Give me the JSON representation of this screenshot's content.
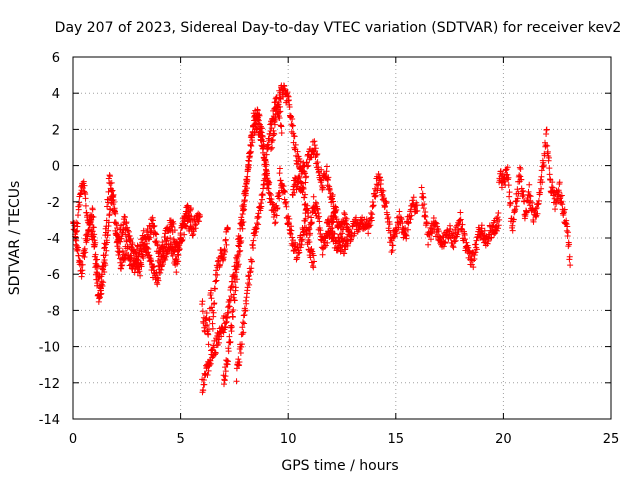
{
  "chart_data": {
    "type": "scatter",
    "title": "Day 207 of 2023, Sidereal Day-to-day VTEC variation (SDTVAR) for receiver kev2",
    "xlabel": "GPS time / hours",
    "ylabel": "SDTVAR / TECUs",
    "xlim": [
      0,
      25
    ],
    "ylim": [
      -14,
      6
    ],
    "x_ticks": [
      "0",
      "5",
      "10",
      "15",
      "20",
      "25"
    ],
    "y_ticks": [
      "6",
      "4",
      "2",
      "0",
      "-2",
      "-4",
      "-6",
      "-8",
      "-10",
      "-12",
      "-14"
    ],
    "grid": true,
    "marker": "+",
    "color": "#ff0000",
    "series": [
      {
        "name": "SDTVAR",
        "traces": [
          [
            [
              0.0,
              -3.0
            ],
            [
              0.2,
              -4.5
            ],
            [
              0.4,
              -5.8
            ],
            [
              0.6,
              -4.2
            ],
            [
              0.8,
              -3.0
            ],
            [
              1.0,
              -4.8
            ],
            [
              1.2,
              -7.6
            ],
            [
              1.4,
              -6.0
            ],
            [
              1.6,
              -4.2
            ],
            [
              1.8,
              -1.5
            ],
            [
              2.0,
              -3.5
            ],
            [
              2.2,
              -5.5
            ],
            [
              2.5,
              -4.5
            ],
            [
              2.8,
              -5.8
            ],
            [
              3.0,
              -4.8
            ],
            [
              3.3,
              -4.0
            ],
            [
              3.6,
              -5.5
            ],
            [
              3.9,
              -6.2
            ],
            [
              4.2,
              -5.0
            ],
            [
              4.5,
              -4.2
            ],
            [
              4.8,
              -5.5
            ],
            [
              5.0,
              -4.0
            ],
            [
              5.3,
              -3.0
            ],
            [
              5.6,
              -3.5
            ],
            [
              5.9,
              -2.8
            ]
          ],
          [
            [
              0.1,
              -4.0
            ],
            [
              0.3,
              -2.0
            ],
            [
              0.5,
              -0.8
            ],
            [
              0.7,
              -3.5
            ],
            [
              0.9,
              -2.5
            ],
            [
              1.1,
              -5.5
            ],
            [
              1.3,
              -6.8
            ],
            [
              1.5,
              -4.0
            ],
            [
              1.7,
              -0.5
            ],
            [
              1.9,
              -2.2
            ],
            [
              2.1,
              -4.2
            ],
            [
              2.4,
              -3.2
            ],
            [
              2.7,
              -4.5
            ],
            [
              3.1,
              -5.8
            ],
            [
              3.4,
              -4.2
            ],
            [
              3.7,
              -3.0
            ],
            [
              4.0,
              -5.2
            ],
            [
              4.3,
              -4.0
            ],
            [
              4.6,
              -3.2
            ],
            [
              4.9,
              -5.0
            ],
            [
              5.2,
              -2.5
            ],
            [
              5.5,
              -2.8
            ]
          ],
          [
            [
              6.0,
              -7.5
            ],
            [
              6.1,
              -9.0
            ],
            [
              6.2,
              -8.2
            ],
            [
              6.3,
              -9.5
            ],
            [
              6.4,
              -7.0
            ],
            [
              6.5,
              -8.8
            ],
            [
              6.6,
              -6.5
            ],
            [
              6.8,
              -5.2
            ],
            [
              7.0,
              -4.8
            ],
            [
              7.2,
              -3.5
            ]
          ],
          [
            [
              6.0,
              -12.2
            ],
            [
              6.3,
              -11.0
            ],
            [
              6.6,
              -10.0
            ],
            [
              6.9,
              -9.2
            ],
            [
              7.2,
              -8.0
            ],
            [
              7.5,
              -6.0
            ],
            [
              7.8,
              -3.2
            ],
            [
              8.1,
              -0.5
            ],
            [
              8.3,
              1.5
            ],
            [
              8.5,
              2.5
            ],
            [
              8.7,
              1.8
            ],
            [
              8.9,
              0.2
            ],
            [
              9.1,
              -1.5
            ]
          ],
          [
            [
              7.0,
              -12.0
            ],
            [
              7.2,
              -10.5
            ],
            [
              7.4,
              -8.5
            ],
            [
              7.6,
              -6.0
            ],
            [
              7.8,
              -4.0
            ],
            [
              8.0,
              -1.8
            ],
            [
              8.2,
              0.5
            ],
            [
              8.4,
              2.5
            ],
            [
              8.6,
              3.0
            ],
            [
              8.8,
              1.5
            ],
            [
              9.0,
              -0.5
            ],
            [
              9.2,
              -2.0
            ],
            [
              9.4,
              -2.8
            ],
            [
              9.6,
              -1.5
            ]
          ],
          [
            [
              7.6,
              -11.5
            ],
            [
              7.8,
              -10.0
            ],
            [
              8.0,
              -8.0
            ],
            [
              8.2,
              -6.0
            ],
            [
              8.4,
              -4.2
            ],
            [
              8.6,
              -2.8
            ],
            [
              8.8,
              -1.5
            ],
            [
              9.0,
              0.5
            ],
            [
              9.2,
              2.2
            ],
            [
              9.4,
              3.5
            ],
            [
              9.6,
              3.0
            ],
            [
              9.7,
              1.8
            ]
          ],
          [
            [
              9.2,
              1.0
            ],
            [
              9.4,
              2.5
            ],
            [
              9.6,
              3.8
            ],
            [
              9.8,
              4.3
            ],
            [
              10.0,
              3.5
            ],
            [
              10.2,
              2.0
            ],
            [
              10.4,
              0.5
            ],
            [
              10.6,
              0.0
            ],
            [
              10.8,
              -0.5
            ],
            [
              11.0,
              0.8
            ],
            [
              11.2,
              1.0
            ],
            [
              11.4,
              0.0
            ],
            [
              11.6,
              -1.0
            ],
            [
              11.8,
              -0.5
            ],
            [
              12.0,
              -1.8
            ],
            [
              12.2,
              -2.5
            ]
          ],
          [
            [
              9.6,
              -0.5
            ],
            [
              9.8,
              -1.5
            ],
            [
              10.0,
              -3.0
            ],
            [
              10.2,
              -4.2
            ],
            [
              10.4,
              -4.8
            ],
            [
              10.6,
              -4.2
            ],
            [
              10.8,
              -3.0
            ],
            [
              11.0,
              -4.8
            ],
            [
              11.2,
              -5.3
            ]
          ],
          [
            [
              10.2,
              -1.5
            ],
            [
              10.4,
              -0.8
            ],
            [
              10.6,
              -1.0
            ],
            [
              10.8,
              -2.0
            ],
            [
              11.0,
              -3.5
            ],
            [
              11.2,
              -2.0
            ],
            [
              11.4,
              -3.0
            ],
            [
              11.6,
              -4.5
            ],
            [
              11.8,
              -4.0
            ],
            [
              12.0,
              -3.2
            ],
            [
              12.2,
              -2.5
            ],
            [
              12.4,
              -3.8
            ],
            [
              12.6,
              -3.0
            ],
            [
              12.8,
              -3.5
            ]
          ],
          [
            [
              11.8,
              -3.0
            ],
            [
              12.2,
              -4.2
            ],
            [
              12.6,
              -4.5
            ],
            [
              13.0,
              -3.5
            ],
            [
              13.4,
              -3.0
            ],
            [
              13.8,
              -3.5
            ],
            [
              14.0,
              -1.5
            ],
            [
              14.2,
              -0.8
            ],
            [
              14.4,
              -1.5
            ],
            [
              14.6,
              -2.5
            ],
            [
              14.8,
              -4.5
            ],
            [
              15.0,
              -3.5
            ],
            [
              15.2,
              -2.8
            ],
            [
              15.4,
              -4.0
            ],
            [
              15.6,
              -3.0
            ],
            [
              15.8,
              -2.0
            ],
            [
              16.0,
              -2.5
            ]
          ],
          [
            [
              16.2,
              -1.5
            ],
            [
              16.5,
              -4.0
            ],
            [
              16.8,
              -3.2
            ],
            [
              17.1,
              -4.5
            ],
            [
              17.4,
              -3.5
            ],
            [
              17.7,
              -4.2
            ],
            [
              18.0,
              -3.0
            ],
            [
              18.3,
              -4.8
            ],
            [
              18.6,
              -5.2
            ],
            [
              18.9,
              -3.5
            ],
            [
              19.2,
              -4.0
            ],
            [
              19.5,
              -3.5
            ],
            [
              19.8,
              -3.0
            ]
          ],
          [
            [
              19.8,
              -0.5
            ],
            [
              20.0,
              -1.0
            ],
            [
              20.2,
              -0.3
            ],
            [
              20.4,
              -3.5
            ],
            [
              20.6,
              -2.0
            ],
            [
              20.8,
              -0.2
            ],
            [
              21.0,
              -2.8
            ],
            [
              21.2,
              -1.5
            ],
            [
              21.4,
              -3.0
            ],
            [
              21.6,
              -2.2
            ],
            [
              21.8,
              -0.5
            ],
            [
              22.0,
              1.8
            ],
            [
              22.2,
              -1.0
            ],
            [
              22.4,
              -2.0
            ],
            [
              22.6,
              -1.2
            ],
            [
              22.8,
              -2.5
            ],
            [
              23.0,
              -4.0
            ],
            [
              23.1,
              -5.5
            ]
          ]
        ]
      }
    ]
  }
}
